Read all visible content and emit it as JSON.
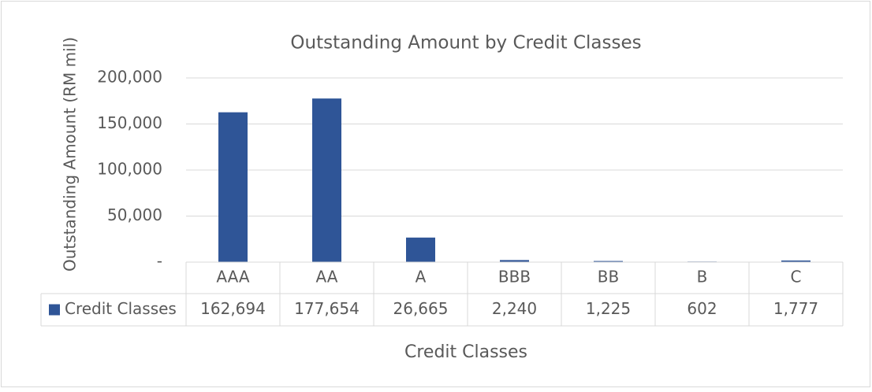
{
  "chart_data": {
    "type": "bar",
    "title": "Outstanding Amount by Credit Classes",
    "y_label": "Outstanding Amount (RM mil)",
    "x_label": "Credit Classes",
    "categories": [
      "AAA",
      "AA",
      "A",
      "BBB",
      "BB",
      "B",
      "C"
    ],
    "series": [
      {
        "name": "Credit Classes",
        "color": "#2f5597",
        "values": [
          162694,
          177654,
          26665,
          2240,
          1225,
          602,
          1777
        ],
        "value_labels": [
          "162,694",
          "177,654",
          "26,665",
          "2,240",
          "1,225",
          "602",
          "1,777"
        ]
      }
    ],
    "ylim": [
      0,
      200000
    ],
    "yticks": [
      {
        "value": 0,
        "label": "-"
      },
      {
        "value": 50000,
        "label": "50,000"
      },
      {
        "value": 100000,
        "label": "100,000"
      },
      {
        "value": 150000,
        "label": "150,000"
      },
      {
        "value": 200000,
        "label": "200,000"
      }
    ],
    "grid": true,
    "data_table": true
  }
}
